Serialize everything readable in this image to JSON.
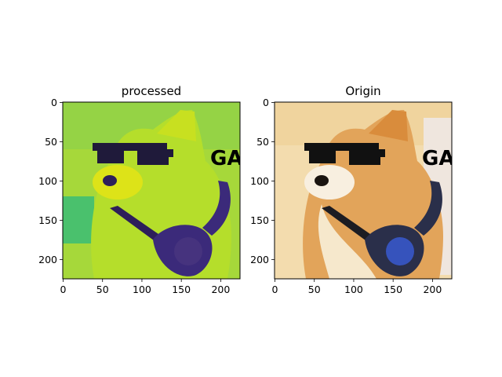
{
  "chart_data": [
    {
      "type": "image",
      "title": "processed",
      "colormap": "viridis",
      "image_description": "shiba inu dog wearing pixel sunglasses and a gaming headset, grayscale rendered with viridis colormap",
      "xlim": [
        0,
        224
      ],
      "ylim": [
        224,
        0
      ],
      "xticks": [
        0,
        50,
        100,
        150,
        200
      ],
      "yticks": [
        0,
        50,
        100,
        150,
        200
      ]
    },
    {
      "type": "image",
      "title": "Origin",
      "colormap": "rgb",
      "image_description": "shiba inu dog wearing pixel sunglasses and a gaming headset, original colors",
      "xlim": [
        0,
        224
      ],
      "ylim": [
        224,
        0
      ],
      "xticks": [
        0,
        50,
        100,
        150,
        200
      ],
      "yticks": [
        0,
        50,
        100,
        150,
        200
      ]
    }
  ],
  "colors": {
    "viridis_bg": "#a6d83a",
    "viridis_dark": "#3b2a7a",
    "origin_bg": "#f3dcae",
    "origin_fur": "#e2a45a",
    "headset": "#2a2f4a",
    "headset_light": "#3a5cd8"
  }
}
